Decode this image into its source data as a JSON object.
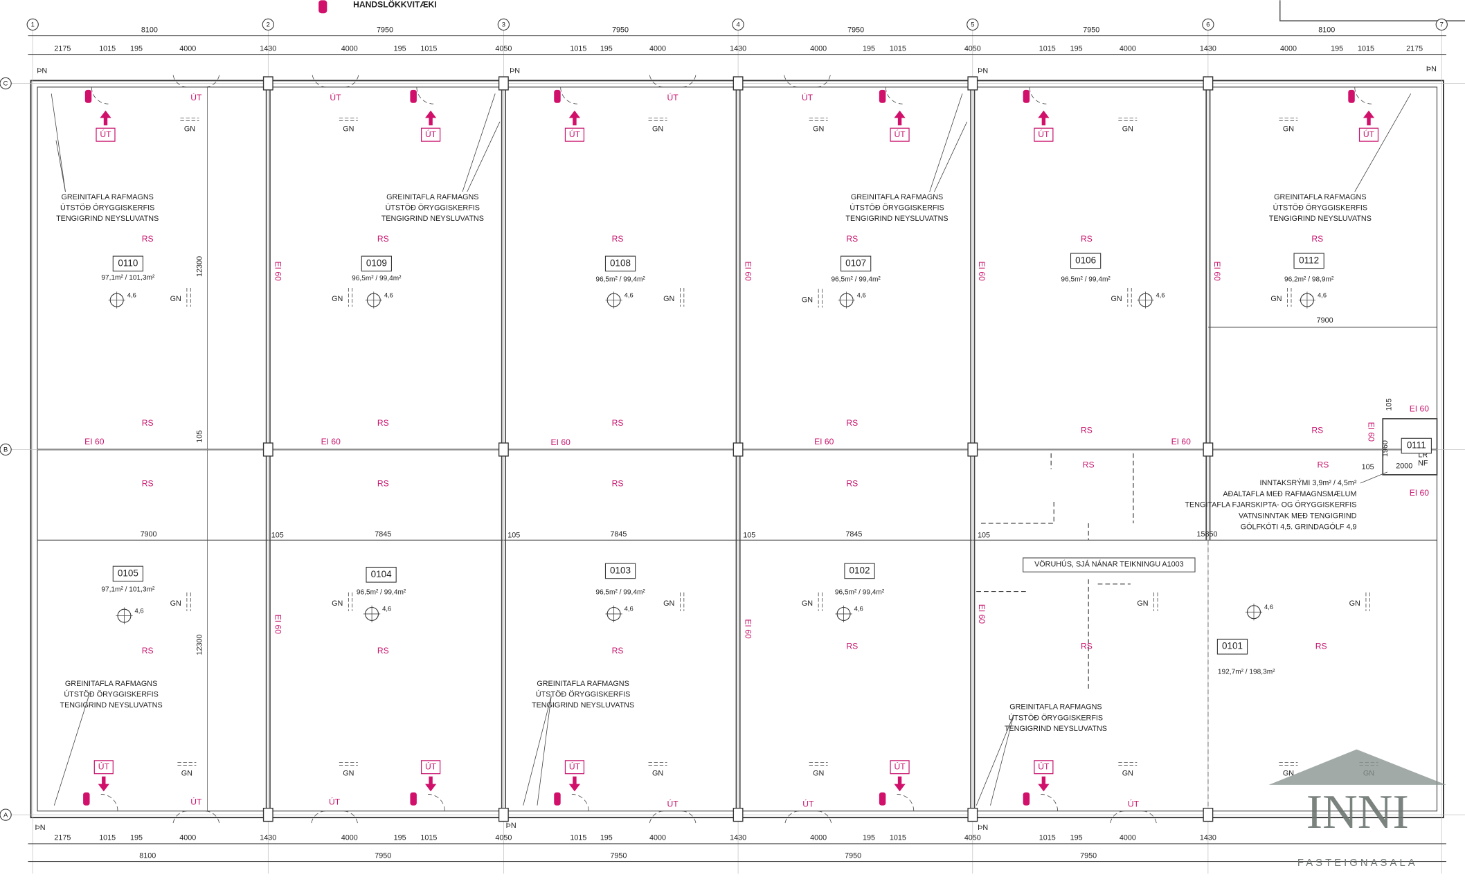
{
  "legend": {
    "label": "HANDSLÖKKVITÆKI"
  },
  "grid": {
    "columns": [
      "1",
      "2",
      "3",
      "4",
      "5",
      "6",
      "7"
    ],
    "rows": [
      "C",
      "B",
      "A"
    ]
  },
  "dimensions": {
    "top_overall": [
      "8100",
      "7950",
      "7950",
      "7950",
      "7950",
      "8100"
    ],
    "top_detail": [
      "2175",
      "1015",
      "195",
      "4000",
      "1430",
      "4000",
      "195",
      "1015",
      "4050",
      "1015",
      "195",
      "4000",
      "1430",
      "4000",
      "195",
      "1015",
      "4050",
      "1015",
      "195",
      "4000",
      "1430",
      "4000",
      "195",
      "1015",
      "2175"
    ],
    "bottom_detail": [
      "2175",
      "1015",
      "195",
      "4000",
      "1430",
      "4000",
      "195",
      "1015",
      "4050",
      "1015",
      "195",
      "4000",
      "1430",
      "4000",
      "195",
      "1015",
      "4050",
      "1015",
      "195",
      "4000",
      "1430"
    ],
    "bottom_overall": [
      "8100",
      "7950",
      "7950",
      "7950",
      "7950"
    ],
    "inner": [
      "12300",
      "12300",
      "105",
      "7900",
      "105",
      "7845",
      "105",
      "7845",
      "105",
      "7845",
      "105",
      "15850",
      "7900",
      "105",
      "1960",
      "2000",
      "105",
      "LR",
      "NF"
    ]
  },
  "rooms": [
    {
      "number": "0110",
      "area": "97,1m² / 101,3m²"
    },
    {
      "number": "0109",
      "area": "96,5m² / 99,4m²"
    },
    {
      "number": "0108",
      "area": "96,5m² / 99,4m²"
    },
    {
      "number": "0107",
      "area": "96,5m² / 99,4m²"
    },
    {
      "number": "0106",
      "area": "96,5m² / 99,4m²"
    },
    {
      "number": "0112",
      "area": "96,2m² / 98,9m²"
    },
    {
      "number": "0105",
      "area": "97,1m² / 101,3m²"
    },
    {
      "number": "0104",
      "area": "96,5m² / 99,4m²"
    },
    {
      "number": "0103",
      "area": "96,5m² / 99,4m²"
    },
    {
      "number": "0102",
      "area": "96,5m² / 99,4m²"
    },
    {
      "number": "0101",
      "area": "192,7m² / 198,3m²"
    },
    {
      "number": "0111"
    }
  ],
  "notes": [
    [
      "GREINITAFLA RAFMAGNS",
      "ÚTSTÖÐ ÖRYGGISKERFIS",
      "TENGIGRIND NEYSLUVATNS"
    ],
    [
      "GREINITAFLA RAFMAGNS",
      "ÚTSTÖÐ ÖRYGGISKERFIS",
      "TENGIGRIND NEYSLUVATNS"
    ],
    [
      "GREINITAFLA RAFMAGNS",
      "ÚTSTÖÐ ÖRYGGISKERFIS",
      "TENGIGRIND NEYSLUVATNS"
    ],
    [
      "GREINITAFLA RAFMAGNS",
      "ÚTSTÖÐ ÖRYGGISKERFIS",
      "TENGIGRIND NEYSLUVATNS"
    ],
    [
      "GREINITAFLA RAFMAGNS",
      "ÚTSTÖÐ ÖRYGGISKERFIS",
      "TENGIGRIND NEYSLUVATNS"
    ],
    [
      "GREINITAFLA RAFMAGNS",
      "ÚTSTÖÐ ÖRYGGISKERFIS",
      "TENGIGRIND NEYSLUVATNS"
    ],
    [
      "GREINITAFLA RAFMAGNS",
      "ÚTSTÖÐ ÖRYGGISKERFIS",
      "TENGIGRIND NEYSLUVATNS"
    ]
  ],
  "intake_notes": [
    "INNTAKSRÝMI 3,9m² / 4,5m²",
    "AÐALTAFLA MEÐ RAFMAGNSMÆLUM",
    "TENGITAFLA FJARSKIPTA- OG ÖRYGGISKERFIS",
    "VATNSINNTAK MEÐ TENGIGRIND",
    "GÓLFKÓTI 4,5. GRINDAGÓLF 4,9"
  ],
  "warehouse_note": "VÖRUHÚS, SJÁ NÁNAR TEIKNINGU A1003",
  "labels": {
    "rs": [
      "RS",
      "RS",
      "RS",
      "RS",
      "RS",
      "RS",
      "RS",
      "RS",
      "RS",
      "RS",
      "RS",
      "RS",
      "RS",
      "RS",
      "RS",
      "RS",
      "RS",
      "RS",
      "RS",
      "RS",
      "RS",
      "RS",
      "RS",
      "RS"
    ],
    "ei60": [
      "EI 60",
      "EI 60",
      "EI 60",
      "EI 60",
      "EI 60",
      "EI 60",
      "EI 60"
    ],
    "ei60_vertical": [
      "EI 60",
      "EI 60",
      "EI 60",
      "EI 60",
      "EI 60",
      "EI 60",
      "EI 60",
      "EI 60"
    ],
    "exit_signs": [
      "ÚT",
      "ÚT",
      "ÚT",
      "ÚT",
      "ÚT",
      "ÚT",
      "ÚT",
      "ÚT",
      "ÚT",
      "ÚT",
      "ÚT"
    ],
    "exit_text": [
      "ÚT",
      "ÚT",
      "ÚT",
      "ÚT",
      "ÚT",
      "ÚT",
      "ÚT",
      "ÚT",
      "ÚT"
    ],
    "gn": [
      "GN",
      "GN",
      "GN",
      "GN",
      "GN",
      "GN",
      "GN",
      "GN",
      "GN",
      "GN",
      "GN",
      "GN",
      "GN",
      "GN",
      "GN",
      "GN",
      "GN",
      "GN",
      "GN",
      "GN",
      "GN",
      "GN",
      "GN",
      "GN",
      "GN"
    ],
    "tn": [
      "ÞN",
      "ÞN",
      "ÞN",
      "ÞN",
      "ÞN",
      "ÞN",
      "ÞN"
    ],
    "height": [
      "4,6",
      "4,6",
      "4,6",
      "4,6",
      "4,6",
      "4,6",
      "4,6",
      "4,6",
      "4,6",
      "4,6",
      "4,6"
    ]
  },
  "logo": {
    "name": "INNI",
    "subtitle": "FASTEIGNASALA"
  }
}
